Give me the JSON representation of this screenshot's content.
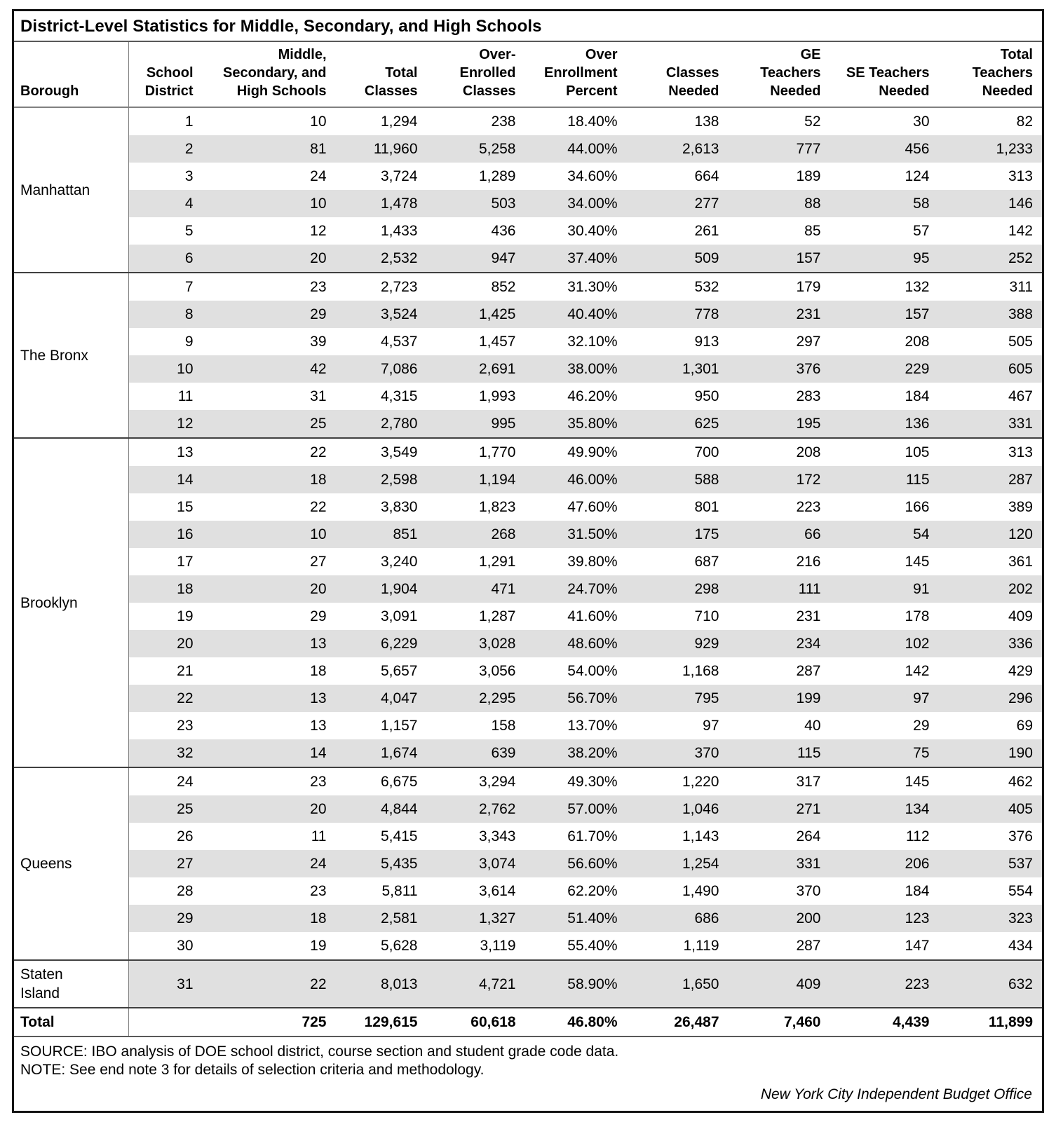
{
  "title": "District-Level Statistics for Middle, Secondary, and High Schools",
  "theme": {
    "stripe": "#e0e0e0",
    "border-outer": "#141414",
    "border-dark": "#404040",
    "border-mid": "#595959",
    "border-light": "#808080",
    "text": "#000000",
    "bg": "#ffffff"
  },
  "table": {
    "columns": [
      {
        "id": "borough",
        "label": "Borough"
      },
      {
        "id": "school-district",
        "label": "School\nDistrict"
      },
      {
        "id": "schools",
        "label": "Middle,\nSecondary, and\nHigh Schools"
      },
      {
        "id": "total-classes",
        "label": "Total\nClasses"
      },
      {
        "id": "over-enrolled-classes",
        "label": "Over-\nEnrolled\nClasses"
      },
      {
        "id": "over-enrollment-percent",
        "label": "Over\nEnrollment\nPercent"
      },
      {
        "id": "classes-needed",
        "label": "Classes\nNeeded"
      },
      {
        "id": "ge-teachers-needed",
        "label": "GE\nTeachers\nNeeded"
      },
      {
        "id": "se-teachers-needed",
        "label": "SE Teachers\nNeeded"
      },
      {
        "id": "total-teachers-needed",
        "label": "Total\nTeachers\nNeeded"
      }
    ],
    "groups": [
      {
        "borough": "Manhattan",
        "rows": [
          [
            "1",
            "10",
            "1,294",
            "238",
            "18.40%",
            "138",
            "52",
            "30",
            "82"
          ],
          [
            "2",
            "81",
            "11,960",
            "5,258",
            "44.00%",
            "2,613",
            "777",
            "456",
            "1,233"
          ],
          [
            "3",
            "24",
            "3,724",
            "1,289",
            "34.60%",
            "664",
            "189",
            "124",
            "313"
          ],
          [
            "4",
            "10",
            "1,478",
            "503",
            "34.00%",
            "277",
            "88",
            "58",
            "146"
          ],
          [
            "5",
            "12",
            "1,433",
            "436",
            "30.40%",
            "261",
            "85",
            "57",
            "142"
          ],
          [
            "6",
            "20",
            "2,532",
            "947",
            "37.40%",
            "509",
            "157",
            "95",
            "252"
          ]
        ]
      },
      {
        "borough": "The Bronx",
        "rows": [
          [
            "7",
            "23",
            "2,723",
            "852",
            "31.30%",
            "532",
            "179",
            "132",
            "311"
          ],
          [
            "8",
            "29",
            "3,524",
            "1,425",
            "40.40%",
            "778",
            "231",
            "157",
            "388"
          ],
          [
            "9",
            "39",
            "4,537",
            "1,457",
            "32.10%",
            "913",
            "297",
            "208",
            "505"
          ],
          [
            "10",
            "42",
            "7,086",
            "2,691",
            "38.00%",
            "1,301",
            "376",
            "229",
            "605"
          ],
          [
            "11",
            "31",
            "4,315",
            "1,993",
            "46.20%",
            "950",
            "283",
            "184",
            "467"
          ],
          [
            "12",
            "25",
            "2,780",
            "995",
            "35.80%",
            "625",
            "195",
            "136",
            "331"
          ]
        ]
      },
      {
        "borough": "Brooklyn",
        "rows": [
          [
            "13",
            "22",
            "3,549",
            "1,770",
            "49.90%",
            "700",
            "208",
            "105",
            "313"
          ],
          [
            "14",
            "18",
            "2,598",
            "1,194",
            "46.00%",
            "588",
            "172",
            "115",
            "287"
          ],
          [
            "15",
            "22",
            "3,830",
            "1,823",
            "47.60%",
            "801",
            "223",
            "166",
            "389"
          ],
          [
            "16",
            "10",
            "851",
            "268",
            "31.50%",
            "175",
            "66",
            "54",
            "120"
          ],
          [
            "17",
            "27",
            "3,240",
            "1,291",
            "39.80%",
            "687",
            "216",
            "145",
            "361"
          ],
          [
            "18",
            "20",
            "1,904",
            "471",
            "24.70%",
            "298",
            "111",
            "91",
            "202"
          ],
          [
            "19",
            "29",
            "3,091",
            "1,287",
            "41.60%",
            "710",
            "231",
            "178",
            "409"
          ],
          [
            "20",
            "13",
            "6,229",
            "3,028",
            "48.60%",
            "929",
            "234",
            "102",
            "336"
          ],
          [
            "21",
            "18",
            "5,657",
            "3,056",
            "54.00%",
            "1,168",
            "287",
            "142",
            "429"
          ],
          [
            "22",
            "13",
            "4,047",
            "2,295",
            "56.70%",
            "795",
            "199",
            "97",
            "296"
          ],
          [
            "23",
            "13",
            "1,157",
            "158",
            "13.70%",
            "97",
            "40",
            "29",
            "69"
          ],
          [
            "32",
            "14",
            "1,674",
            "639",
            "38.20%",
            "370",
            "115",
            "75",
            "190"
          ]
        ]
      },
      {
        "borough": "Queens",
        "rows": [
          [
            "24",
            "23",
            "6,675",
            "3,294",
            "49.30%",
            "1,220",
            "317",
            "145",
            "462"
          ],
          [
            "25",
            "20",
            "4,844",
            "2,762",
            "57.00%",
            "1,046",
            "271",
            "134",
            "405"
          ],
          [
            "26",
            "11",
            "5,415",
            "3,343",
            "61.70%",
            "1,143",
            "264",
            "112",
            "376"
          ],
          [
            "27",
            "24",
            "5,435",
            "3,074",
            "56.60%",
            "1,254",
            "331",
            "206",
            "537"
          ],
          [
            "28",
            "23",
            "5,811",
            "3,614",
            "62.20%",
            "1,490",
            "370",
            "184",
            "554"
          ],
          [
            "29",
            "18",
            "2,581",
            "1,327",
            "51.40%",
            "686",
            "200",
            "123",
            "323"
          ],
          [
            "30",
            "19",
            "5,628",
            "3,119",
            "55.40%",
            "1,119",
            "287",
            "147",
            "434"
          ]
        ]
      },
      {
        "borough": "Staten Island",
        "rows": [
          [
            "31",
            "22",
            "8,013",
            "4,721",
            "58.90%",
            "1,650",
            "409",
            "223",
            "632"
          ]
        ]
      }
    ],
    "total": {
      "label": "Total",
      "values": [
        "",
        "725",
        "129,615",
        "60,618",
        "46.80%",
        "26,487",
        "7,460",
        "4,439",
        "11,899"
      ]
    }
  },
  "footer": {
    "source": "SOURCE: IBO analysis of DOE school district, course section and student grade code data.",
    "note": "NOTE: See end note 3 for details of selection criteria and methodology.",
    "attribution": "New York City Independent Budget Office"
  }
}
